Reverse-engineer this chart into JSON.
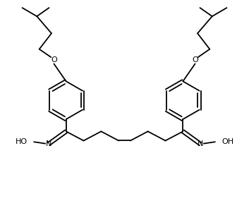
{
  "bg_color": "#ffffff",
  "line_color": "#000000",
  "line_width": 1.3,
  "fig_width": 3.53,
  "fig_height": 3.12,
  "dpi": 100,
  "xlim": [
    0,
    10
  ],
  "ylim": [
    0,
    9
  ]
}
